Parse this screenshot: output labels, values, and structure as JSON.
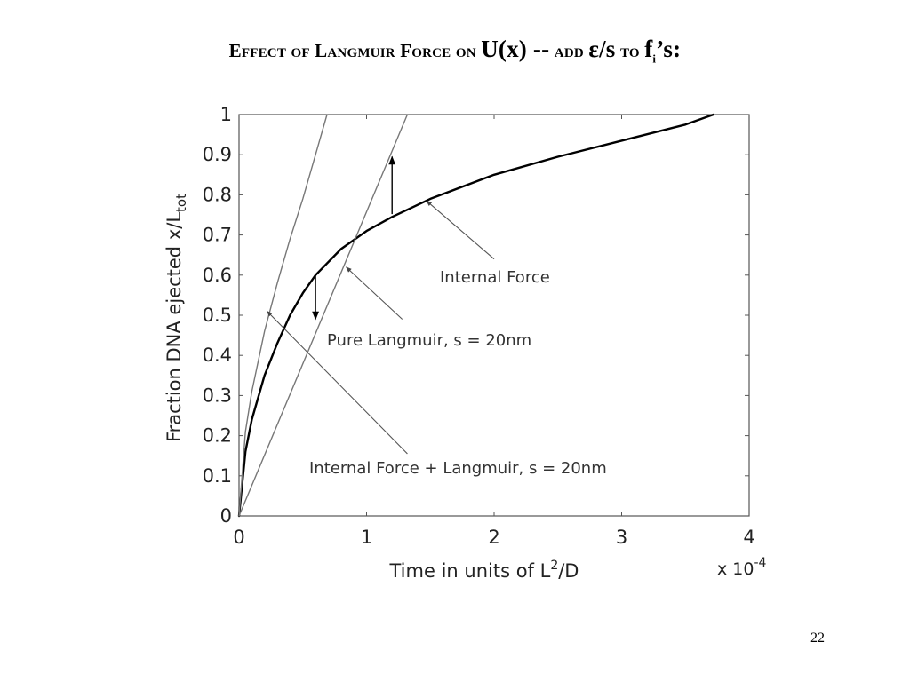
{
  "slide": {
    "title_prefix": "Effect of Langmuir Force on",
    "title_ux": "U(x) --",
    "title_add": "add",
    "title_eps": "ε/s",
    "title_to": "to",
    "title_f": "f",
    "title_sub": "i",
    "title_suffix": "’s:",
    "page_number": "22"
  },
  "chart_data": {
    "type": "line",
    "title": "",
    "xlabel": "Time in units of L²/D",
    "xlabel_base": "Time in units of L",
    "xlabel_sup": "2",
    "xlabel_tail": "/D",
    "x_multiplier_base": "x 10",
    "x_multiplier_exp": "-4",
    "ylabel": "Fraction DNA ejected x/Ltot",
    "ylabel_base": "Fraction DNA ejected x/L",
    "ylabel_sub": "tot",
    "xlim": [
      0,
      4
    ],
    "ylim": [
      0,
      1
    ],
    "x_ticks": [
      "0",
      "1",
      "2",
      "3",
      "4"
    ],
    "y_ticks": [
      "0",
      "0.1",
      "0.2",
      "0.3",
      "0.4",
      "0.5",
      "0.6",
      "0.7",
      "0.8",
      "0.9",
      "1"
    ],
    "grid": false,
    "series": [
      {
        "name": "Internal Force",
        "color": "#000000",
        "x": [
          0,
          0.05,
          0.1,
          0.2,
          0.3,
          0.4,
          0.5,
          0.6,
          0.8,
          1.0,
          1.2,
          1.5,
          2.0,
          2.5,
          3.0,
          3.5,
          3.72
        ],
        "y": [
          0,
          0.16,
          0.24,
          0.35,
          0.43,
          0.5,
          0.555,
          0.6,
          0.665,
          0.71,
          0.745,
          0.79,
          0.85,
          0.895,
          0.935,
          0.975,
          1.0
        ]
      },
      {
        "name": "Pure Langmuir, s = 20nm",
        "color": "#777777",
        "x": [
          0,
          1.32
        ],
        "y": [
          0,
          1.0
        ]
      },
      {
        "name": "Internal Force + Langmuir, s = 20nm",
        "color": "#777777",
        "x": [
          0,
          0.05,
          0.1,
          0.2,
          0.3,
          0.4,
          0.5,
          0.6,
          0.69
        ],
        "y": [
          0,
          0.21,
          0.31,
          0.46,
          0.58,
          0.69,
          0.79,
          0.9,
          1.0
        ]
      }
    ],
    "annotations": [
      {
        "text": "Internal Force",
        "from": [
          2.0,
          0.64
        ],
        "to": [
          1.47,
          0.785
        ]
      },
      {
        "text": "Pure Langmuir, s = 20nm",
        "from": [
          1.28,
          0.49
        ],
        "to": [
          0.84,
          0.62
        ]
      },
      {
        "text": "Internal Force + Langmuir, s = 20nm",
        "from": [
          1.32,
          0.155
        ],
        "to": [
          0.22,
          0.51
        ]
      }
    ],
    "shift_arrows": [
      {
        "x": 1.2,
        "from_y": 0.752,
        "to_y": 0.895
      },
      {
        "x": 0.6,
        "from_y": 0.6,
        "to_y": 0.49
      }
    ]
  }
}
